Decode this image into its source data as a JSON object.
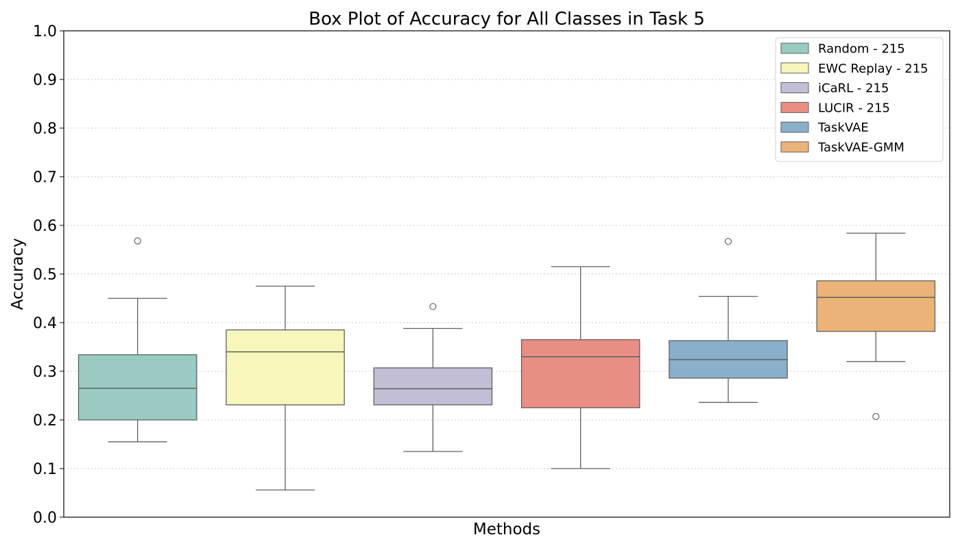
{
  "chart_data": {
    "type": "box",
    "title": "Box Plot of Accuracy for All Classes in Task 5",
    "xlabel": "Methods",
    "ylabel": "Accuracy",
    "ylim": [
      0.0,
      1.0
    ],
    "yticks": [
      "0.0",
      "0.1",
      "0.2",
      "0.3",
      "0.4",
      "0.5",
      "0.6",
      "0.7",
      "0.8",
      "0.9",
      "1.0"
    ],
    "grid": "horizontal-dotted",
    "legend_position": "top-right",
    "series": [
      {
        "name": "Random - 215",
        "color": "#99cbc2",
        "whisker_low": 0.155,
        "q1": 0.2,
        "median": 0.265,
        "q3": 0.334,
        "whisker_high": 0.45,
        "outliers": [
          0.568
        ]
      },
      {
        "name": "EWC Replay - 215",
        "color": "#f7f7bb",
        "whisker_low": 0.056,
        "q1": 0.231,
        "median": 0.34,
        "q3": 0.385,
        "whisker_high": 0.475,
        "outliers": []
      },
      {
        "name": "iCaRL - 215",
        "color": "#c1bed6",
        "whisker_low": 0.135,
        "q1": 0.231,
        "median": 0.264,
        "q3": 0.307,
        "whisker_high": 0.388,
        "outliers": [
          0.433
        ]
      },
      {
        "name": "LUCIR - 215",
        "color": "#e98e83",
        "whisker_low": 0.1,
        "q1": 0.225,
        "median": 0.33,
        "q3": 0.365,
        "whisker_high": 0.515,
        "outliers": []
      },
      {
        "name": "TaskVAE",
        "color": "#8aafcb",
        "whisker_low": 0.236,
        "q1": 0.286,
        "median": 0.324,
        "q3": 0.363,
        "whisker_high": 0.454,
        "outliers": [
          0.567
        ]
      },
      {
        "name": "TaskVAE-GMM",
        "color": "#ebb377",
        "whisker_low": 0.32,
        "q1": 0.382,
        "median": 0.452,
        "q3": 0.486,
        "whisker_high": 0.584,
        "outliers": [
          0.207
        ]
      }
    ]
  }
}
